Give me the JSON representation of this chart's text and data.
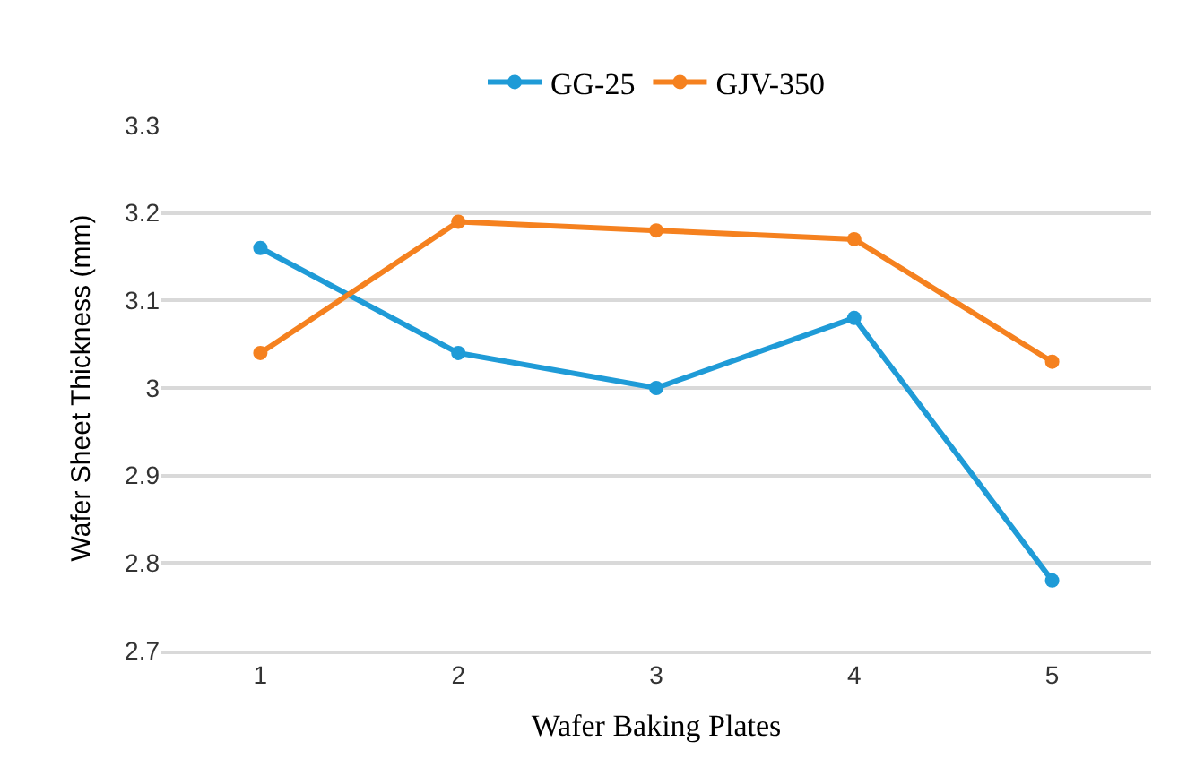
{
  "chart_data": {
    "type": "line",
    "xlabel": "Wafer Baking Plates",
    "ylabel": "Wafer Sheet Thickness (mm)",
    "categories": [
      "1",
      "2",
      "3",
      "4",
      "5"
    ],
    "series": [
      {
        "name": "GG-25",
        "color": "#1f9bd7",
        "values": [
          3.16,
          3.04,
          3.0,
          3.08,
          2.78
        ]
      },
      {
        "name": "GJV-350",
        "color": "#f5811f",
        "values": [
          3.04,
          3.19,
          3.18,
          3.17,
          3.03
        ]
      }
    ],
    "ylim": [
      2.7,
      3.3
    ],
    "yticks": [
      2.7,
      2.8,
      2.9,
      3,
      3.1,
      3.2,
      3.3
    ],
    "grid": "y",
    "legend": "top",
    "marker": "circle",
    "line_style": "solid"
  }
}
